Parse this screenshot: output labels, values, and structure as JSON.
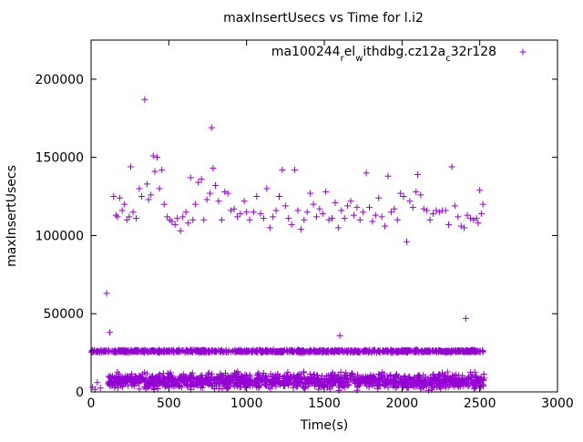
{
  "chart_data": {
    "type": "scatter",
    "title": "maxInsertUsecs vs Time for l.i2",
    "xlabel": "Time(s)",
    "ylabel": "maxInsertUsecs",
    "xlim": [
      0,
      3000
    ],
    "ylim": [
      0,
      225000
    ],
    "x_ticks": [
      0,
      500,
      1000,
      1500,
      2000,
      2500,
      3000
    ],
    "y_ticks": [
      0,
      50000,
      100000,
      150000,
      200000
    ],
    "x_tick_labels": [
      "0",
      "500",
      "1000",
      "1500",
      "2000",
      "2500",
      "3000"
    ],
    "y_tick_labels": [
      "0",
      "50000",
      "100000",
      "150000",
      "200000"
    ],
    "grid": false,
    "legend_position": "top-right",
    "marker": "+",
    "color": "#9400d3",
    "series": [
      {
        "name_parts": [
          "ma100244",
          "r",
          "el",
          "w",
          "ithdbg.cz12a",
          "c",
          "32r128"
        ],
        "points": [
          [
            10,
            3000
          ],
          [
            25,
            1500
          ],
          [
            40,
            6000
          ],
          [
            60,
            2500
          ],
          [
            85,
            26000
          ],
          [
            100,
            63000
          ],
          [
            120,
            38000
          ],
          [
            135,
            9000
          ],
          [
            145,
            125000
          ],
          [
            160,
            113000
          ],
          [
            170,
            112000
          ],
          [
            185,
            124000
          ],
          [
            200,
            116000
          ],
          [
            215,
            120000
          ],
          [
            230,
            110000
          ],
          [
            245,
            112000
          ],
          [
            255,
            144000
          ],
          [
            270,
            115000
          ],
          [
            290,
            111000
          ],
          [
            310,
            130000
          ],
          [
            325,
            125000
          ],
          [
            345,
            187000
          ],
          [
            360,
            133000
          ],
          [
            370,
            123000
          ],
          [
            385,
            126000
          ],
          [
            400,
            151000
          ],
          [
            410,
            141000
          ],
          [
            425,
            150000
          ],
          [
            440,
            130000
          ],
          [
            455,
            142000
          ],
          [
            470,
            120000
          ],
          [
            490,
            112000
          ],
          [
            505,
            110000
          ],
          [
            520,
            109000
          ],
          [
            540,
            107000
          ],
          [
            555,
            111000
          ],
          [
            575,
            103000
          ],
          [
            590,
            112000
          ],
          [
            610,
            115000
          ],
          [
            625,
            108000
          ],
          [
            640,
            137000
          ],
          [
            655,
            110000
          ],
          [
            670,
            120000
          ],
          [
            690,
            134000
          ],
          [
            710,
            136000
          ],
          [
            725,
            110000
          ],
          [
            745,
            123000
          ],
          [
            765,
            127000
          ],
          [
            775,
            169000
          ],
          [
            785,
            143000
          ],
          [
            800,
            132000
          ],
          [
            820,
            122000
          ],
          [
            840,
            110000
          ],
          [
            860,
            128000
          ],
          [
            880,
            127000
          ],
          [
            900,
            116000
          ],
          [
            920,
            117000
          ],
          [
            940,
            112000
          ],
          [
            960,
            114000
          ],
          [
            985,
            122000
          ],
          [
            1000,
            115000
          ],
          [
            1020,
            110000
          ],
          [
            1045,
            115000
          ],
          [
            1065,
            125000
          ],
          [
            1090,
            114000
          ],
          [
            1110,
            111000
          ],
          [
            1130,
            130000
          ],
          [
            1150,
            105000
          ],
          [
            1170,
            112000
          ],
          [
            1190,
            116000
          ],
          [
            1210,
            125000
          ],
          [
            1230,
            142000
          ],
          [
            1250,
            119000
          ],
          [
            1270,
            111000
          ],
          [
            1290,
            107000
          ],
          [
            1310,
            142000
          ],
          [
            1330,
            116000
          ],
          [
            1350,
            104000
          ],
          [
            1370,
            110000
          ],
          [
            1390,
            115000
          ],
          [
            1410,
            127000
          ],
          [
            1430,
            120000
          ],
          [
            1450,
            112000
          ],
          [
            1470,
            117000
          ],
          [
            1490,
            114000
          ],
          [
            1510,
            128000
          ],
          [
            1530,
            110000
          ],
          [
            1550,
            111000
          ],
          [
            1570,
            121000
          ],
          [
            1590,
            105000
          ],
          [
            1610,
            116000
          ],
          [
            1630,
            111000
          ],
          [
            1650,
            119000
          ],
          [
            1670,
            122000
          ],
          [
            1690,
            113000
          ],
          [
            1710,
            118000
          ],
          [
            1730,
            110000
          ],
          [
            1750,
            115000
          ],
          [
            1770,
            140000
          ],
          [
            1790,
            118000
          ],
          [
            1810,
            109000
          ],
          [
            1830,
            113000
          ],
          [
            1850,
            124000
          ],
          [
            1870,
            112000
          ],
          [
            1890,
            106000
          ],
          [
            1910,
            138000
          ],
          [
            1930,
            115000
          ],
          [
            1950,
            117000
          ],
          [
            1970,
            110000
          ],
          [
            1990,
            127000
          ],
          [
            2010,
            125000
          ],
          [
            2030,
            96000
          ],
          [
            2050,
            122000
          ],
          [
            2070,
            118000
          ],
          [
            2090,
            128000
          ],
          [
            2100,
            139000
          ],
          [
            2120,
            126000
          ],
          [
            2140,
            117000
          ],
          [
            2160,
            116000
          ],
          [
            2180,
            110000
          ],
          [
            2200,
            114000
          ],
          [
            2220,
            116000
          ],
          [
            2240,
            115000
          ],
          [
            2260,
            116000
          ],
          [
            2280,
            116000
          ],
          [
            2300,
            107000
          ],
          [
            2320,
            144000
          ],
          [
            2340,
            119000
          ],
          [
            2360,
            112000
          ],
          [
            2380,
            106000
          ],
          [
            2400,
            105000
          ],
          [
            2410,
            47000
          ],
          [
            2420,
            113000
          ],
          [
            2440,
            111000
          ],
          [
            2460,
            110000
          ],
          [
            2480,
            111000
          ],
          [
            2490,
            108000
          ],
          [
            2500,
            129000
          ],
          [
            2510,
            114000
          ],
          [
            2520,
            120000
          ],
          [
            1600,
            36000
          ]
        ]
      }
    ],
    "bands": [
      {
        "x_start": 0,
        "x_end": 2530,
        "y_center": 26000,
        "y_spread": 1200,
        "count": 900
      },
      {
        "x_start": 110,
        "x_end": 2530,
        "y_center": 7000,
        "y_spread": 7000,
        "count": 1400
      }
    ]
  }
}
